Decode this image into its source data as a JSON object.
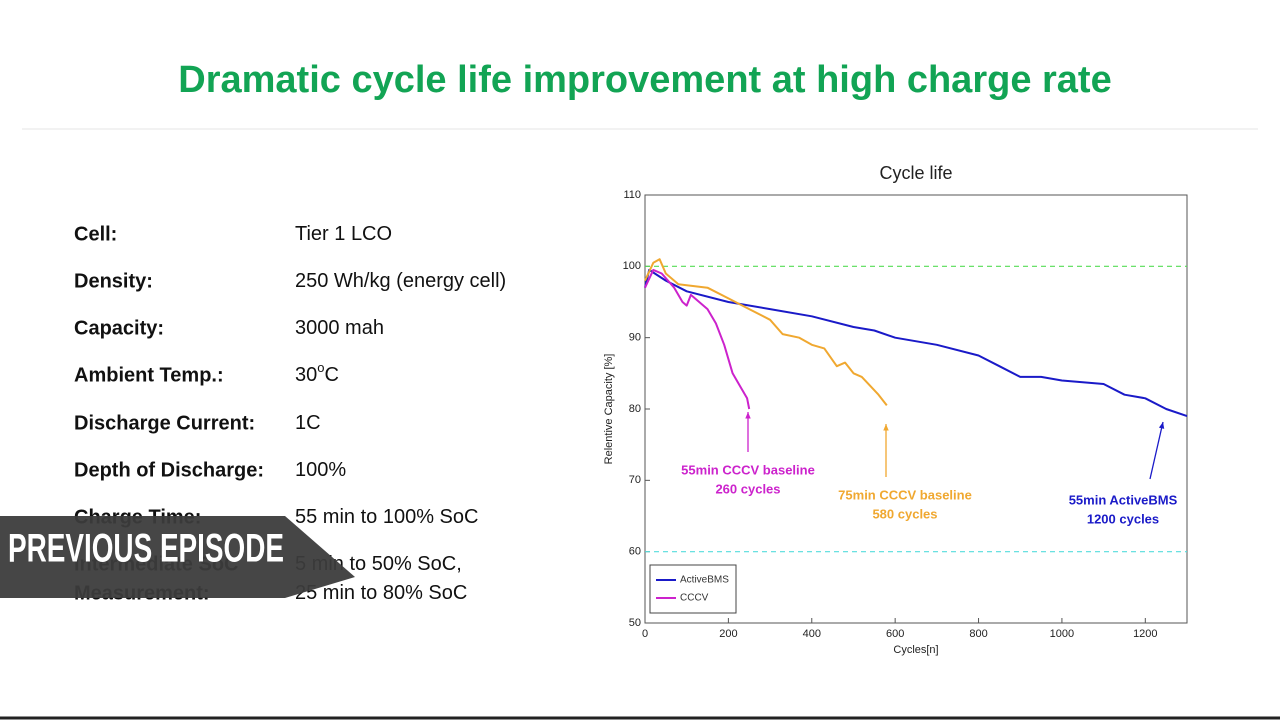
{
  "slide": {
    "title": "Dramatic cycle life improvement at high charge rate",
    "rows": [
      {
        "label": [
          "Cell:"
        ],
        "value": [
          "Tier 1 LCO"
        ]
      },
      {
        "label": [
          "Density:"
        ],
        "value": [
          "250 Wh/kg (energy cell)"
        ]
      },
      {
        "label": [
          "Capacity:"
        ],
        "value": [
          "3000 mah"
        ]
      },
      {
        "label": [
          "Ambient Temp.:"
        ],
        "value": [
          "30"
        ],
        "sup": "o",
        "unit": "C"
      },
      {
        "label": [
          "Discharge Current:"
        ],
        "value": [
          "1C"
        ]
      },
      {
        "label": [
          "Depth of Discharge:"
        ],
        "value": [
          "100%"
        ]
      },
      {
        "label": [
          "Charge Time:"
        ],
        "value": [
          "55 min to 100% SoC"
        ]
      },
      {
        "label": [
          "Intermediate SoC",
          "Measurement:"
        ],
        "value": [
          "5 min to 50% SoC,",
          "25 min to 80% SoC"
        ]
      }
    ]
  },
  "overlay": {
    "banner": "PREVIOUS EPISODE"
  },
  "chart_data": {
    "type": "line",
    "title": "Cycle life",
    "xlabel": "Cycles[n]",
    "ylabel": "Relentive Capacity [%]",
    "xlim": [
      0,
      1300
    ],
    "xticks": [
      0,
      200,
      400,
      600,
      800,
      1000,
      1200
    ],
    "ylim": [
      50,
      110
    ],
    "yticks": [
      50,
      60,
      70,
      80,
      90,
      100,
      110
    ],
    "hlines": [
      {
        "value": 100,
        "color": "#55dd55"
      },
      {
        "value": 60,
        "color": "#55dddd"
      }
    ],
    "series": [
      {
        "name": "ActiveBMS",
        "color": "#1a1ac8",
        "x": [
          0,
          10,
          50,
          100,
          200,
          300,
          400,
          500,
          550,
          600,
          700,
          800,
          850,
          900,
          950,
          1000,
          1100,
          1150,
          1200,
          1250,
          1300
        ],
        "values": [
          97,
          99.5,
          98,
          96.5,
          95,
          94,
          93,
          91.5,
          91,
          90,
          89,
          87.5,
          86,
          84.5,
          84.5,
          84,
          83.5,
          82,
          81.5,
          80,
          79
        ]
      },
      {
        "name": "CCCV",
        "color": "#cc22cc",
        "x": [
          0,
          20,
          40,
          70,
          90,
          100,
          110,
          130,
          150,
          170,
          190,
          210,
          230,
          245,
          250
        ],
        "values": [
          97,
          99.5,
          99,
          97,
          95,
          94.5,
          96,
          95,
          94,
          92,
          89,
          85,
          83,
          81.5,
          80
        ]
      },
      {
        "color": "#f0a830",
        "x": [
          0,
          20,
          35,
          50,
          80,
          150,
          200,
          250,
          300,
          330,
          370,
          400,
          430,
          460,
          480,
          500,
          520,
          560,
          580
        ],
        "values": [
          98,
          100.5,
          101,
          99,
          97.5,
          97,
          95.5,
          94,
          92.5,
          90.5,
          90,
          89,
          88.5,
          86,
          86.5,
          85,
          84.5,
          82,
          80.5
        ]
      }
    ],
    "legend": "lower left",
    "annotations": [
      {
        "text": [
          "55min CCCV baseline",
          "260 cycles"
        ],
        "color": "#cc22cc"
      },
      {
        "text": [
          "75min CCCV baseline",
          "580 cycles"
        ],
        "color": "#f0a830"
      },
      {
        "text": [
          "55min ActiveBMS",
          "1200 cycles"
        ],
        "color": "#1a1ac8"
      }
    ]
  }
}
